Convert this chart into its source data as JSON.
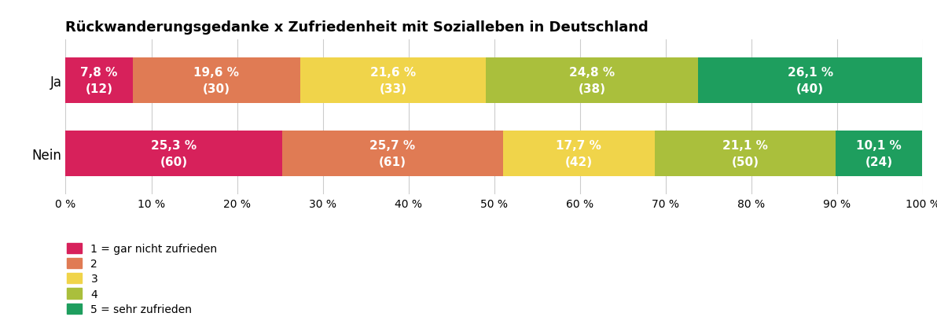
{
  "title": "Rückwanderungsgedanke x Zufriedenheit mit Sozialleben in Deutschland",
  "categories": [
    "Ja",
    "Nein"
  ],
  "colors": [
    "#D7215B",
    "#E07B54",
    "#F0D44A",
    "#AABF3C",
    "#1E9E5E"
  ],
  "legend_labels": [
    "1 = gar nicht zufrieden",
    "2",
    "3",
    "4",
    "5 = sehr zufrieden"
  ],
  "ja_values": [
    7.8,
    19.6,
    21.6,
    24.8,
    26.1
  ],
  "ja_counts": [
    12,
    30,
    33,
    38,
    40
  ],
  "nein_values": [
    25.3,
    25.7,
    17.7,
    21.1,
    10.1
  ],
  "nein_counts": [
    60,
    61,
    42,
    50,
    24
  ],
  "xlim": [
    0,
    100
  ],
  "xticks": [
    0,
    10,
    20,
    30,
    40,
    50,
    60,
    70,
    80,
    90,
    100
  ],
  "xtick_labels": [
    "0 %",
    "10 %",
    "20 %",
    "30 %",
    "40 %",
    "50 %",
    "60 %",
    "70 %",
    "80 %",
    "90 %",
    "100 %"
  ],
  "background_color": "#ffffff",
  "bar_height": 0.62,
  "title_fontsize": 13,
  "tick_fontsize": 10,
  "label_fontsize": 11,
  "legend_fontsize": 10,
  "ytick_fontsize": 12
}
